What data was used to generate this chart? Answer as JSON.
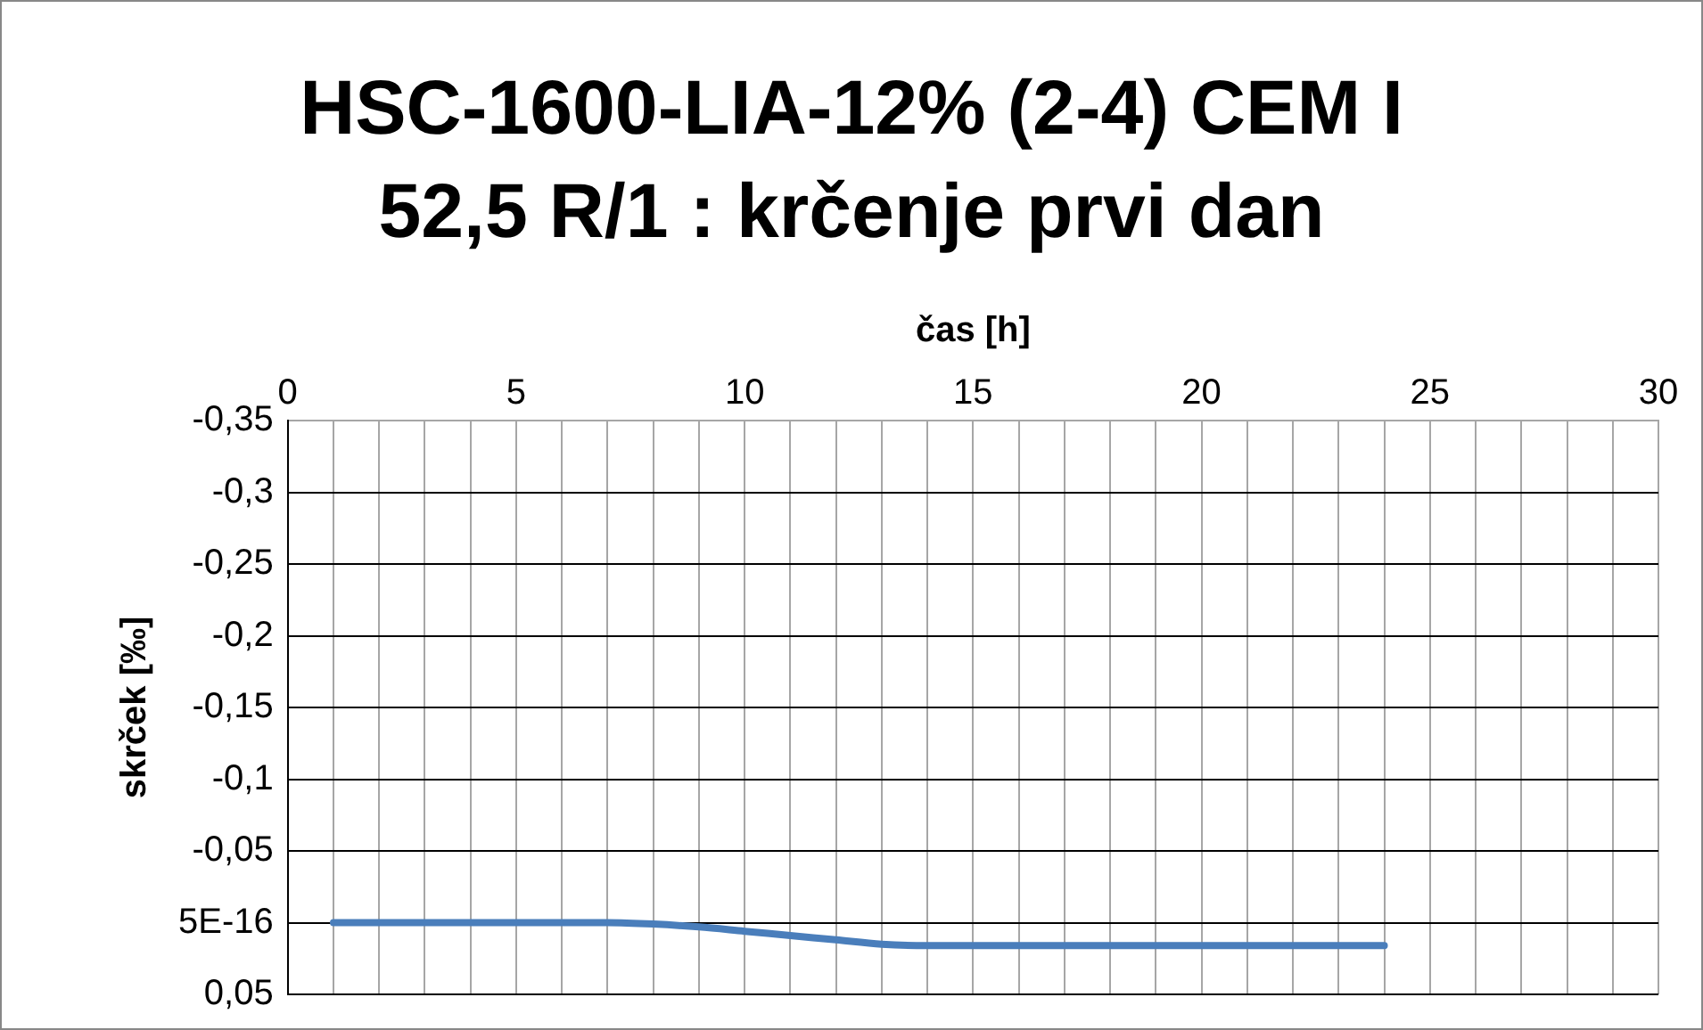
{
  "chart_data": {
    "type": "line",
    "title": "HSC-1600-LIA-12% (2-4) CEM I 52,5 R/1 : krčenje prvi dan",
    "xlabel": "čas [h]",
    "ylabel": "skrček [‰]",
    "x": [
      1,
      3,
      5,
      7,
      8,
      9,
      10,
      11,
      12,
      13,
      14,
      16,
      18,
      20,
      22,
      24
    ],
    "series": [
      {
        "color": "#4a7ebb",
        "values": [
          0,
          0,
          0,
          0,
          0.001,
          0.003,
          0.006,
          0.009,
          0.012,
          0.015,
          0.016,
          0.016,
          0.016,
          0.016,
          0.016,
          0.016
        ]
      }
    ],
    "xlim": [
      0,
      30
    ],
    "xticks": [
      0,
      {
        "value": 1,
        "label": null
      },
      {
        "value": 2,
        "label": null
      },
      {
        "value": 3,
        "label": null
      },
      {
        "value": 4,
        "label": null
      },
      5,
      {
        "value": 6,
        "label": null
      },
      {
        "value": 7,
        "label": null
      },
      {
        "value": 8,
        "label": null
      },
      {
        "value": 9,
        "label": null
      },
      10,
      {
        "value": 11,
        "label": null
      },
      {
        "value": 12,
        "label": null
      },
      {
        "value": 13,
        "label": null
      },
      {
        "value": 14,
        "label": null
      },
      15,
      {
        "value": 16,
        "label": null
      },
      {
        "value": 17,
        "label": null
      },
      {
        "value": 18,
        "label": null
      },
      {
        "value": 19,
        "label": null
      },
      20,
      {
        "value": 21,
        "label": null
      },
      {
        "value": 22,
        "label": null
      },
      {
        "value": 23,
        "label": null
      },
      {
        "value": 24,
        "label": null
      },
      25,
      {
        "value": 26,
        "label": null
      },
      {
        "value": 27,
        "label": null
      },
      {
        "value": 28,
        "label": null
      },
      {
        "value": 29,
        "label": null
      },
      30
    ],
    "ylim": [
      0.05,
      -0.35
    ],
    "yticks": [
      {
        "value": -0.35,
        "label": "-0,35"
      },
      {
        "value": -0.3,
        "label": "-0,3"
      },
      {
        "value": -0.25,
        "label": "-0,25"
      },
      {
        "value": -0.2,
        "label": "-0,2"
      },
      {
        "value": -0.15,
        "label": "-0,15"
      },
      {
        "value": -0.1,
        "label": "-0,1"
      },
      {
        "value": -0.05,
        "label": "-0,05"
      },
      {
        "value": 0,
        "label": "5E-16"
      },
      {
        "value": 0.05,
        "label": "0,05"
      }
    ],
    "grid": true,
    "legend": false,
    "marker": "none",
    "line_style": "solid"
  }
}
